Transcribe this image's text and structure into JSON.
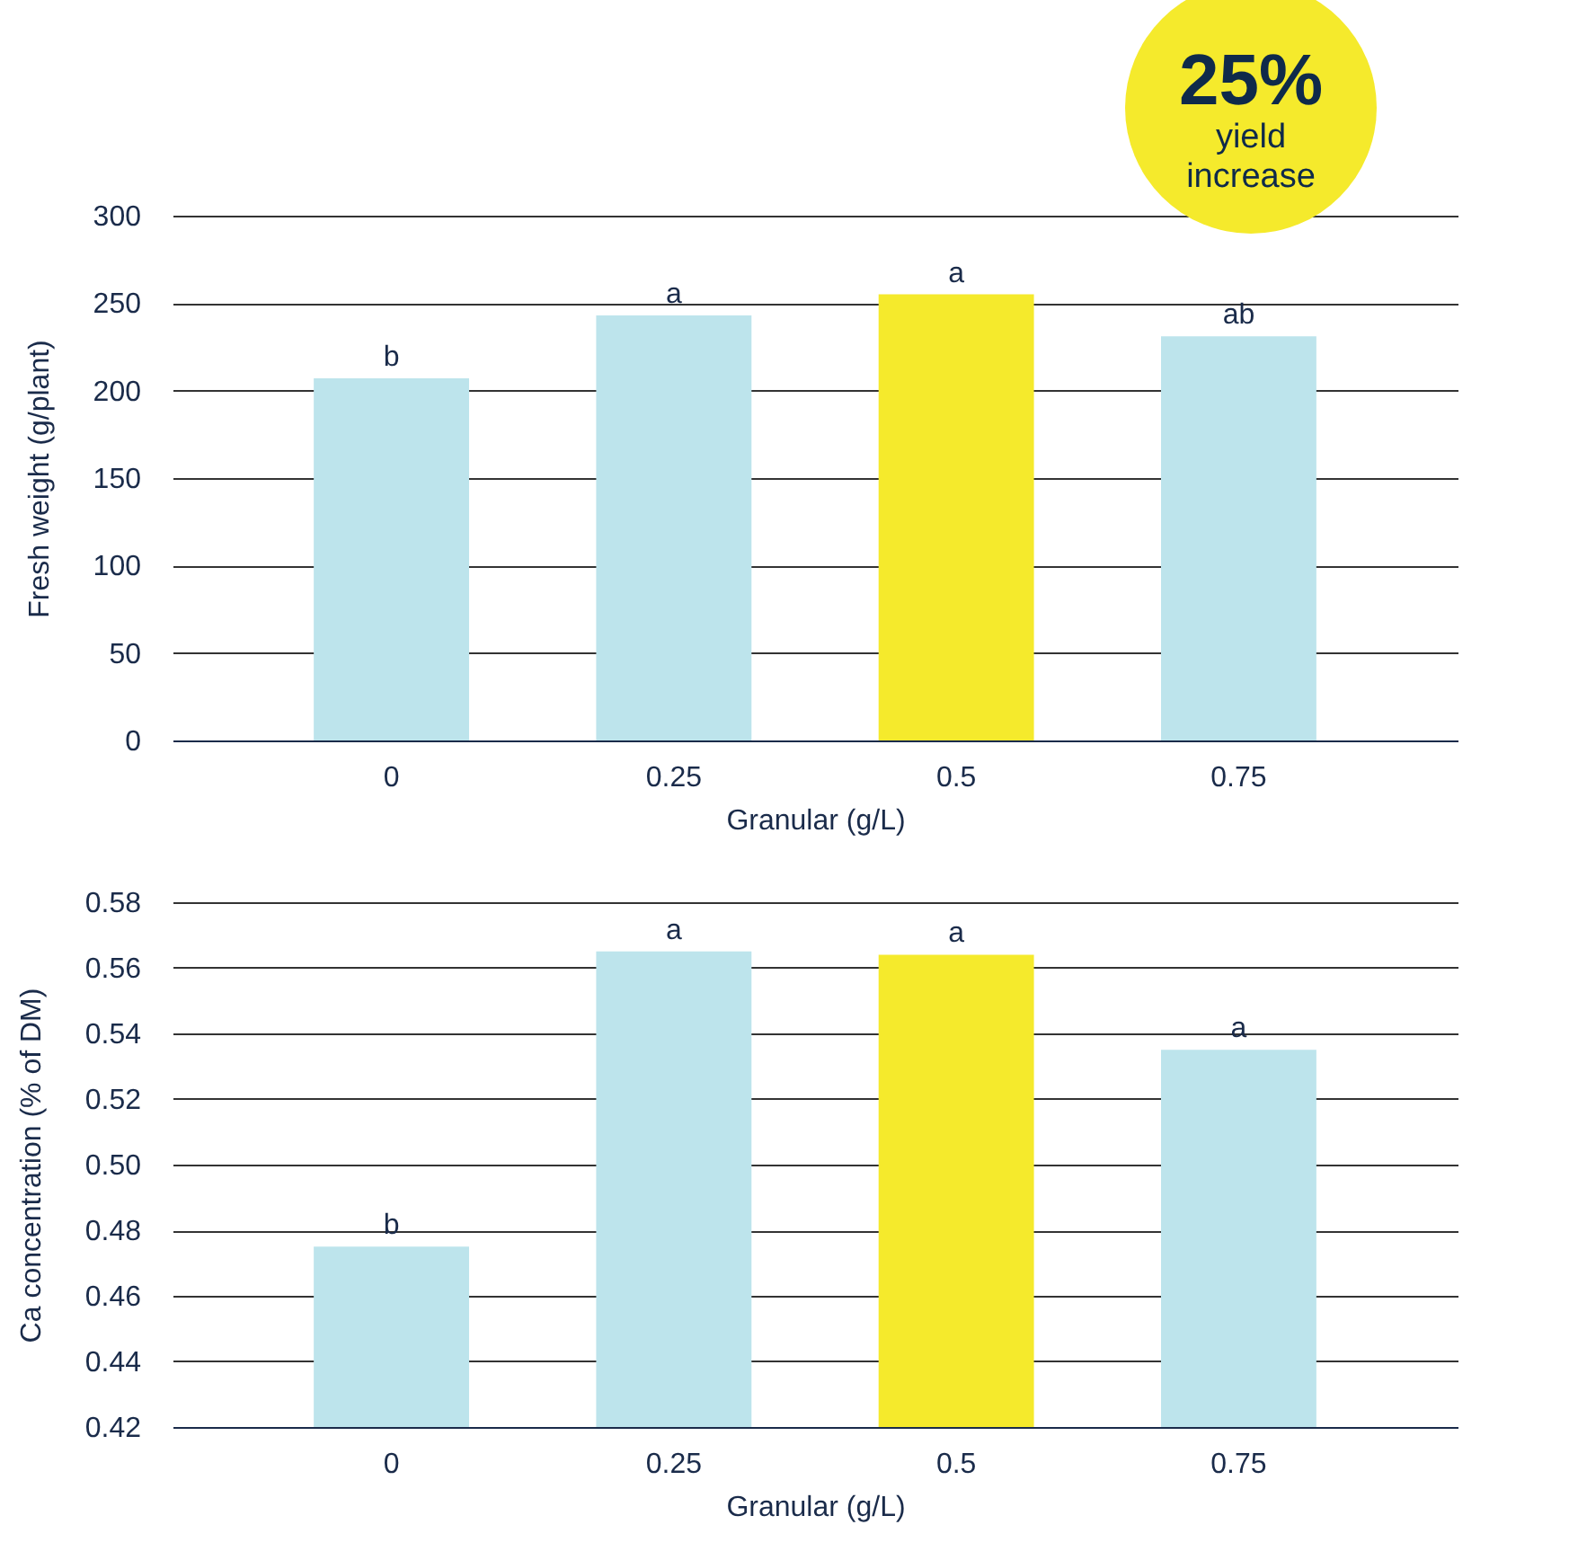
{
  "chart_data": [
    {
      "type": "bar",
      "categories": [
        "0",
        "0.25",
        "0.5",
        "0.75"
      ],
      "values": [
        207,
        243,
        255,
        231
      ],
      "colors": [
        "#bde4ec",
        "#bde4ec",
        "#f5ea2c",
        "#bde4ec"
      ],
      "xlabel": "Granular (g/L)",
      "ylabel": "Fresh weight (g/plant)",
      "ylim": [
        0,
        300
      ],
      "yticks": [
        0,
        50,
        100,
        150,
        200,
        250,
        300
      ],
      "grid": "y",
      "annotations": [
        {
          "text": "b",
          "x": "0",
          "y": 207
        },
        {
          "text": "a",
          "x": "0.25",
          "y": 243
        },
        {
          "text": "a",
          "x": "0.5",
          "y": 255
        },
        {
          "text": "ab",
          "x": "0.75",
          "y": 231
        },
        "25%",
        "yield increase"
      ]
    },
    {
      "type": "bar",
      "categories": [
        "0",
        "0.25",
        "0.5",
        "0.75"
      ],
      "values": [
        0.475,
        0.565,
        0.564,
        0.535
      ],
      "colors": [
        "#bde4ec",
        "#bde4ec",
        "#f5ea2c",
        "#bde4ec"
      ],
      "xlabel": "Granular (g/L)",
      "ylabel": "Ca concentration (% of DM)",
      "ylim": [
        0.42,
        0.58
      ],
      "yticks": [
        {
          "value": 0.42,
          "label": "0.42"
        },
        {
          "value": 0.44,
          "label": "0.44"
        },
        {
          "value": 0.46,
          "label": "0.46"
        },
        {
          "value": 0.48,
          "label": "0.48"
        },
        {
          "value": 0.5,
          "label": "0.50"
        },
        {
          "value": 0.52,
          "label": "0.52"
        },
        {
          "value": 0.54,
          "label": "0.54"
        },
        {
          "value": 0.56,
          "label": "0.56"
        },
        {
          "value": 0.58,
          "label": "0.58"
        }
      ],
      "grid": "y",
      "annotations": [
        {
          "text": "b",
          "x": "0",
          "y": 0.475
        },
        {
          "text": "a",
          "x": "0.25",
          "y": 0.565
        },
        {
          "text": "a",
          "x": "0.5",
          "y": 0.564
        },
        {
          "text": "a",
          "x": "0.75",
          "y": 0.535
        }
      ]
    }
  ]
}
